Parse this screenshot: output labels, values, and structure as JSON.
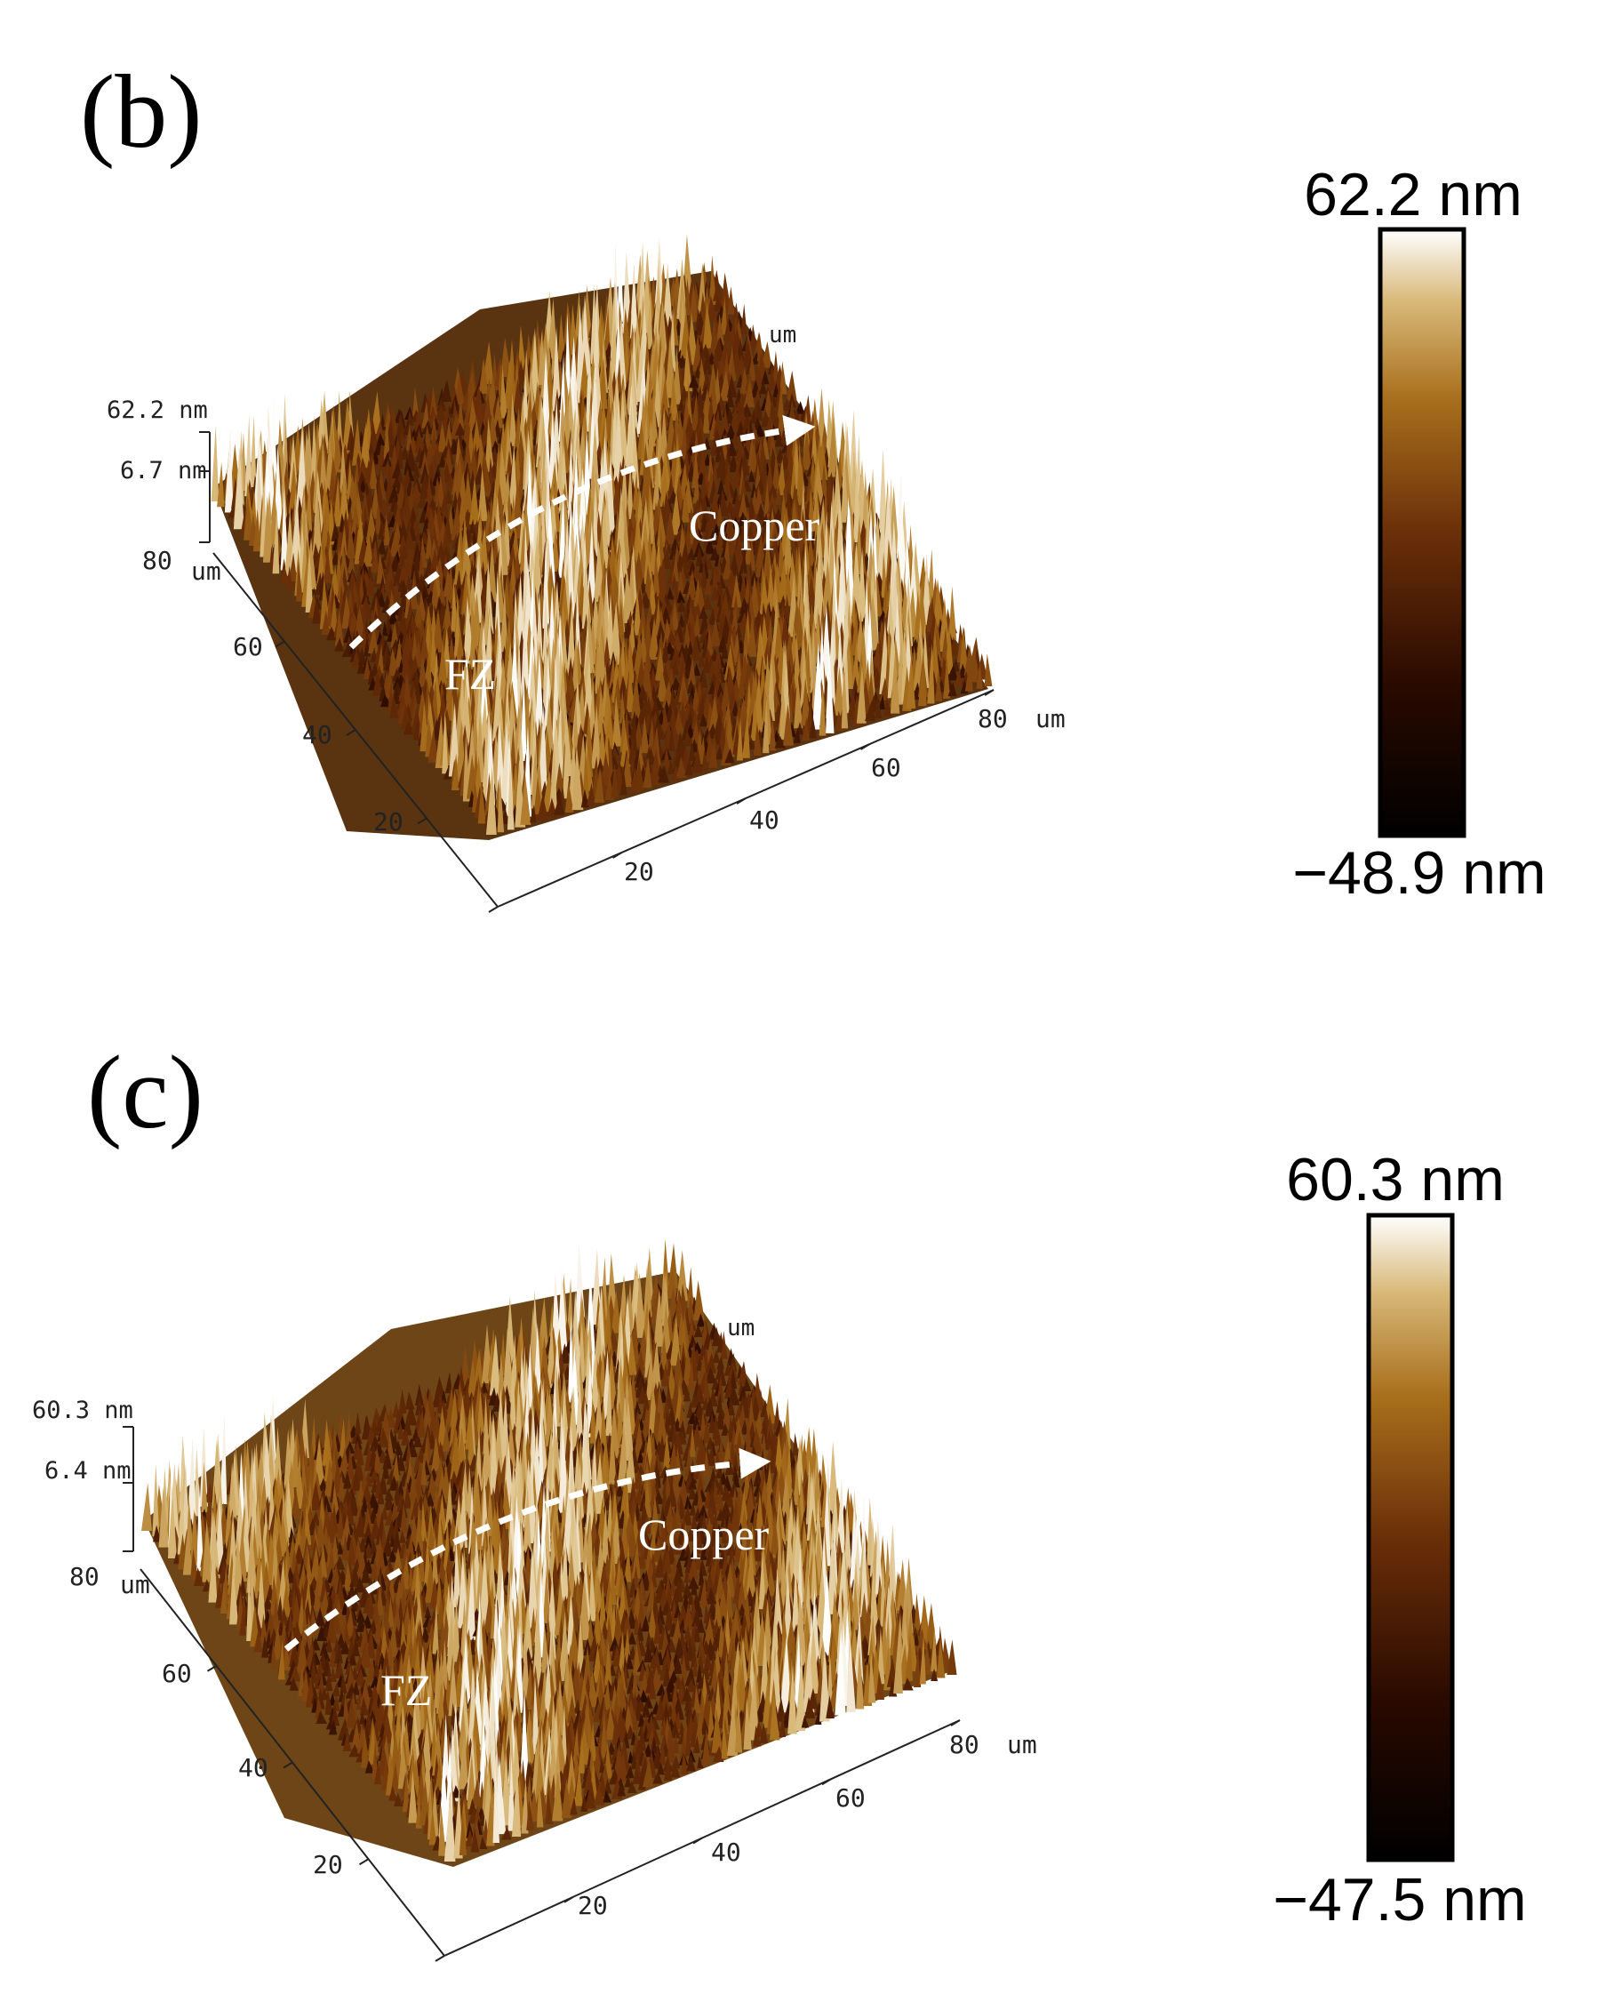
{
  "panels": [
    {
      "id": "b",
      "label": "(b)",
      "z_max_label": "62.2 nm",
      "z_mid_label": "6.7 nm",
      "axis_unit": "um",
      "x_ticks": [
        "20",
        "40",
        "60",
        "80"
      ],
      "y_ticks": [
        "20",
        "40",
        "60",
        "80"
      ],
      "annotations": {
        "start": "FZ",
        "end": "Copper"
      },
      "colorbar": {
        "max_label": "62.2 nm",
        "min_label": "−48.9 nm"
      },
      "colormap": [
        "#000000",
        "#2a0a00",
        "#6b2f08",
        "#a86f1c",
        "#d8b878",
        "#ffffff"
      ]
    },
    {
      "id": "c",
      "label": "(c)",
      "z_max_label": "60.3 nm",
      "z_mid_label": "6.4 nm",
      "axis_unit": "um",
      "x_ticks": [
        "20",
        "40",
        "60",
        "80"
      ],
      "y_ticks": [
        "20",
        "40",
        "60",
        "80"
      ],
      "annotations": {
        "start": "FZ",
        "end": "Copper"
      },
      "colorbar": {
        "max_label": "60.3 nm",
        "min_label": "−47.5 nm"
      },
      "colormap": [
        "#000000",
        "#2a0a00",
        "#6b2f08",
        "#a86f1c",
        "#d8b878",
        "#ffffff"
      ]
    }
  ]
}
